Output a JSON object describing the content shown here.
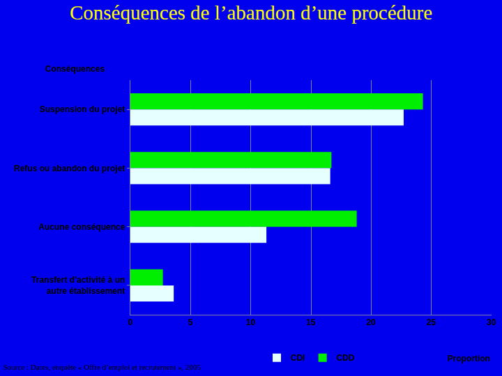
{
  "chart_data": {
    "type": "bar",
    "orientation": "horizontal",
    "title": "Conséquences de l’abandon d’une procédure",
    "y_label": "Conséquences",
    "x_label": "Proportion",
    "source": "Source : Dares, enquête « Offre d’emploi et recrutement », 2005",
    "categories": [
      "Suspension du projet",
      "Refus ou abandon du projet",
      "Aucune conséquence",
      "Transfert d'activité à un\nautre établissement"
    ],
    "series": [
      {
        "name": "CDI",
        "color": "#e6ffff",
        "values": [
          22.7,
          16.6,
          11.3,
          3.6
        ]
      },
      {
        "name": "CDD",
        "color": "#00ee00",
        "values": [
          24.3,
          16.7,
          18.8,
          2.7
        ]
      }
    ],
    "xlim": [
      0,
      30
    ],
    "xticks": [
      0,
      5,
      10,
      15,
      20,
      25,
      30
    ],
    "grid": true,
    "legend": "bottom"
  }
}
